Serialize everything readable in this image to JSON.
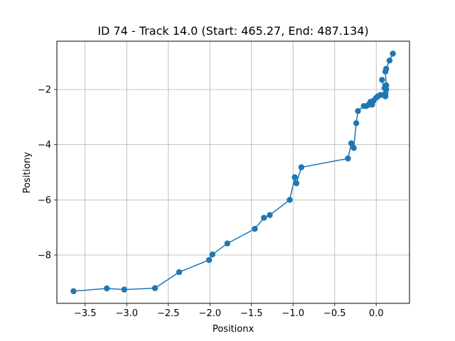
{
  "chart_data": {
    "type": "line",
    "title": "ID 74 - Track 14.0 (Start: 465.27, End: 487.134)",
    "xlabel": "Positionx",
    "ylabel": "Positiony",
    "xlim": [
      -3.84,
      0.4
    ],
    "ylim": [
      -9.75,
      -0.25
    ],
    "xticks": [
      -3.5,
      -3.0,
      -2.5,
      -2.0,
      -1.5,
      -1.0,
      -0.5,
      0.0
    ],
    "xtick_labels": [
      "−3.5",
      "−3.0",
      "−2.5",
      "−2.0",
      "−1.5",
      "−1.0",
      "−0.5",
      "0.0"
    ],
    "yticks": [
      -8,
      -6,
      -4,
      -2
    ],
    "ytick_labels": [
      "−8",
      "−6",
      "−4",
      "−2"
    ],
    "grid": true,
    "series": [
      {
        "color": "#1f77b4",
        "marker": "circle",
        "x": [
          0.2,
          0.16,
          0.12,
          0.11,
          0.12,
          0.1,
          0.12,
          0.09,
          0.11,
          0.07,
          0.11,
          0.05,
          0.02,
          0.0,
          -0.03,
          -0.07,
          -0.05,
          -0.09,
          -0.12,
          -0.15,
          -0.22,
          -0.24,
          -0.27,
          -0.3,
          -0.34,
          -0.9,
          -0.96,
          -0.98,
          -1.04,
          -1.28,
          -1.35,
          -1.46,
          -1.79,
          -1.97,
          -2.01,
          -2.37,
          -2.66,
          -3.03,
          -3.24,
          -3.64
        ],
        "y": [
          -0.7,
          -0.95,
          -1.25,
          -1.35,
          -1.85,
          -1.95,
          -2.0,
          -2.2,
          -2.25,
          -1.65,
          -2.15,
          -2.2,
          -2.25,
          -2.3,
          -2.4,
          -2.45,
          -2.55,
          -2.55,
          -2.6,
          -2.6,
          -2.78,
          -3.22,
          -4.12,
          -3.95,
          -4.5,
          -4.82,
          -5.4,
          -5.18,
          -6.0,
          -6.55,
          -6.65,
          -7.05,
          -7.58,
          -7.98,
          -8.18,
          -8.62,
          -9.2,
          -9.25,
          -9.21,
          -9.31
        ]
      }
    ]
  }
}
